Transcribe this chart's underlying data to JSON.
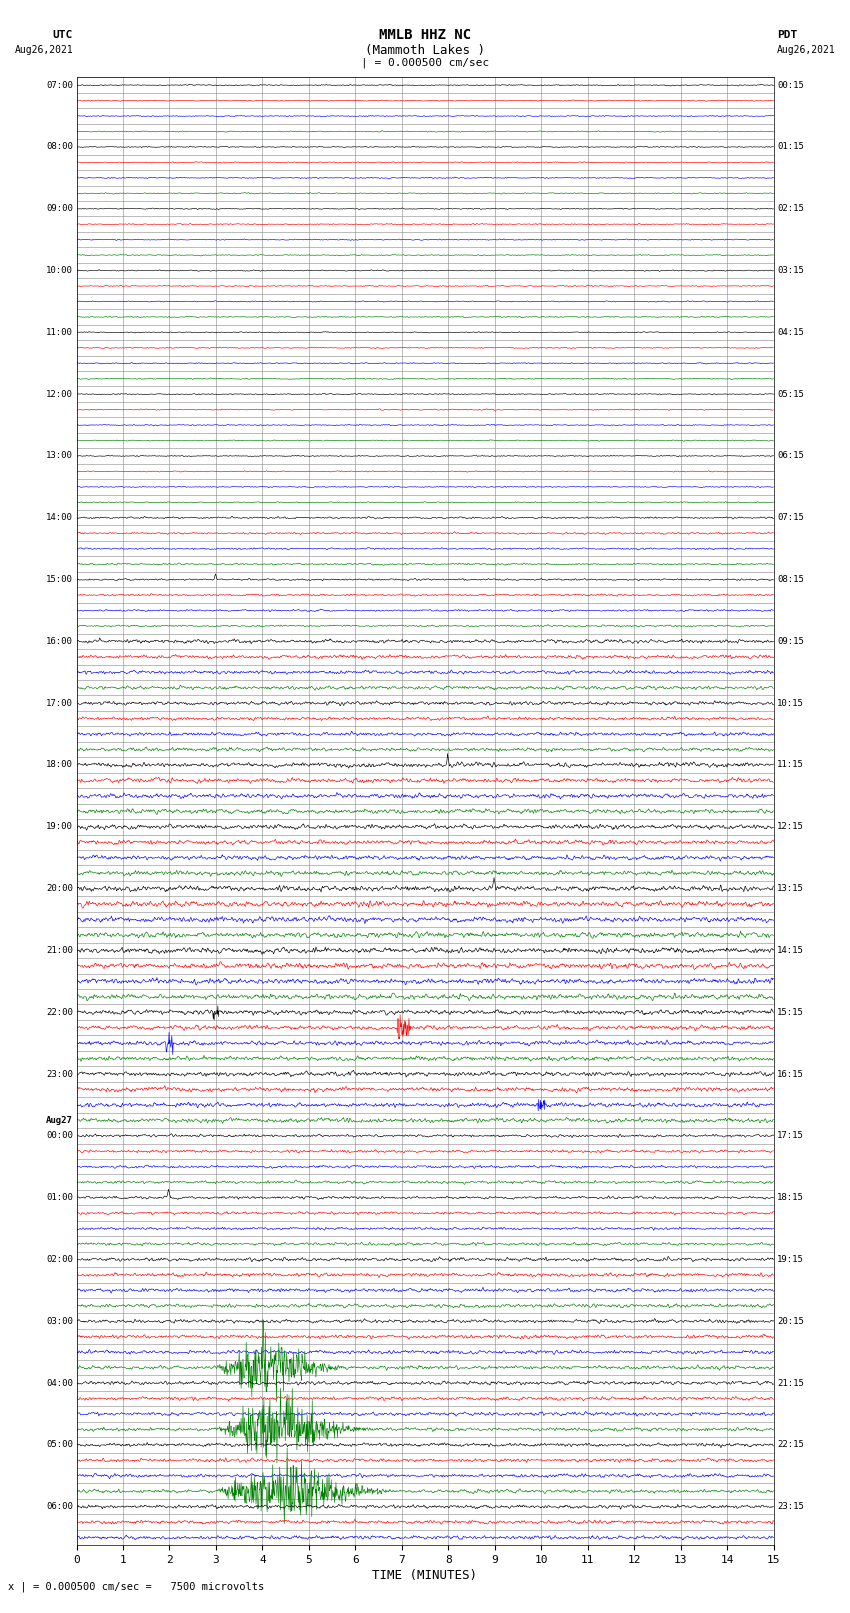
{
  "title_line1": "MMLB HHZ NC",
  "title_line2": "(Mammoth Lakes )",
  "title_line3": "| = 0.000500 cm/sec",
  "left_label_top": "UTC",
  "left_label_date": "Aug26,2021",
  "right_label_top": "PDT",
  "right_label_date": "Aug26,2021",
  "bottom_label": "TIME (MINUTES)",
  "bottom_note": "x | = 0.000500 cm/sec =   7500 microvolts",
  "colors_cycle": [
    "black",
    "red",
    "blue",
    "green"
  ],
  "background_color": "white",
  "grid_color": "#888888",
  "xlim": [
    0,
    15
  ],
  "xticks": [
    0,
    1,
    2,
    3,
    4,
    5,
    6,
    7,
    8,
    9,
    10,
    11,
    12,
    13,
    14,
    15
  ],
  "n_cols": 1500,
  "row_labels_left": [
    "07:00",
    "",
    "",
    "",
    "08:00",
    "",
    "",
    "",
    "09:00",
    "",
    "",
    "",
    "10:00",
    "",
    "",
    "",
    "11:00",
    "",
    "",
    "",
    "12:00",
    "",
    "",
    "",
    "13:00",
    "",
    "",
    "",
    "14:00",
    "",
    "",
    "",
    "15:00",
    "",
    "",
    "",
    "16:00",
    "",
    "",
    "",
    "17:00",
    "",
    "",
    "",
    "18:00",
    "",
    "",
    "",
    "19:00",
    "",
    "",
    "",
    "20:00",
    "",
    "",
    "",
    "21:00",
    "",
    "",
    "",
    "22:00",
    "",
    "",
    "",
    "23:00",
    "",
    "",
    "Aug27",
    "00:00",
    "",
    "",
    "",
    "01:00",
    "",
    "",
    "",
    "02:00",
    "",
    "",
    "",
    "03:00",
    "",
    "",
    "",
    "04:00",
    "",
    "",
    "",
    "05:00",
    "",
    "",
    "",
    "06:00",
    "",
    ""
  ],
  "row_labels_right": [
    "00:15",
    "",
    "",
    "",
    "01:15",
    "",
    "",
    "",
    "02:15",
    "",
    "",
    "",
    "03:15",
    "",
    "",
    "",
    "04:15",
    "",
    "",
    "",
    "05:15",
    "",
    "",
    "",
    "06:15",
    "",
    "",
    "",
    "07:15",
    "",
    "",
    "",
    "08:15",
    "",
    "",
    "",
    "09:15",
    "",
    "",
    "",
    "10:15",
    "",
    "",
    "",
    "11:15",
    "",
    "",
    "",
    "12:15",
    "",
    "",
    "",
    "13:15",
    "",
    "",
    "",
    "14:15",
    "",
    "",
    "",
    "15:15",
    "",
    "",
    "",
    "16:15",
    "",
    "",
    "",
    "17:15",
    "",
    "",
    "",
    "18:15",
    "",
    "",
    "",
    "19:15",
    "",
    "",
    "",
    "20:15",
    "",
    "",
    "",
    "21:15",
    "",
    "",
    "",
    "22:15",
    "",
    "",
    "",
    "23:15",
    "",
    ""
  ]
}
